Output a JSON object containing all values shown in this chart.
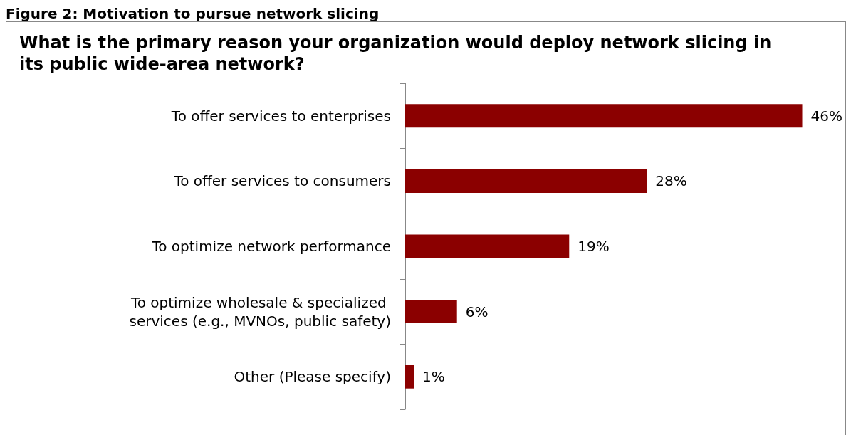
{
  "chart_data": {
    "type": "bar",
    "orientation": "horizontal",
    "title": "Figure 2: Motivation to pursue network slicing",
    "subtitle": "What is the primary reason your organization would deploy network slicing in its public wide-area network?",
    "categories": [
      "To offer services to enterprises",
      "To offer services to consumers",
      "To optimize network performance",
      "To optimize wholesale & specialized services (e.g., MVNOs, public safety)",
      "Other (Please specify)"
    ],
    "values": [
      46,
      28,
      19,
      6,
      1
    ],
    "value_labels": [
      "46%",
      "28%",
      "19%",
      "6%",
      "1%"
    ],
    "color": "#8b0000"
  }
}
